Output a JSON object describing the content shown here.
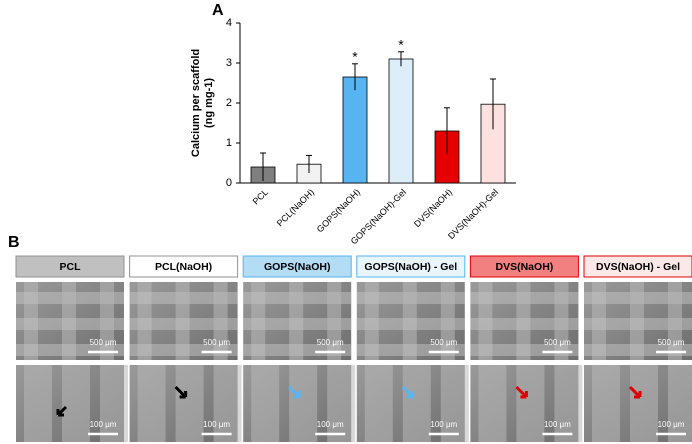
{
  "chart_data": {
    "type": "bar",
    "panel_label": "A",
    "y_label": [
      "Calcium per scaffold",
      "(ng mg-1)"
    ],
    "categories": [
      "PCL",
      "PCL(NaOH)",
      "GOPS(NaOH)",
      "GOPS(NaOH)-Gel",
      "DVS(NaOH)",
      "DVS(NaOH)-Gel"
    ],
    "values": [
      0.4,
      0.47,
      2.65,
      3.1,
      1.3,
      1.97
    ],
    "errors": [
      0.35,
      0.22,
      0.33,
      0.18,
      0.58,
      0.63
    ],
    "colors": [
      "#7f7f7f",
      "#f2f2f2",
      "#56b4f0",
      "#dbeef9",
      "#e60000",
      "#fde0e0"
    ],
    "significance": [
      null,
      null,
      "*",
      "*",
      null,
      null
    ],
    "ylim": [
      0,
      4
    ],
    "yticks": [
      0,
      1,
      2,
      3,
      4
    ]
  },
  "panel_b": {
    "label": "B",
    "columns": [
      {
        "header": "PCL",
        "fill": "#c0c0c0",
        "border": "#909090",
        "scale_bars": [
          "500 μm",
          "100 μm"
        ]
      },
      {
        "header": "PCL(NaOH)",
        "fill": "#ffffff",
        "border": "#909090",
        "scale_bars": [
          "500 μm",
          "100 μm"
        ]
      },
      {
        "header": "GOPS(NaOH)",
        "fill": "#b3dcf5",
        "border": "#56b4f0",
        "scale_bars": [
          "500 μm",
          "100 μm"
        ]
      },
      {
        "header": "GOPS(NaOH) - Gel",
        "fill": "#e9f5fc",
        "border": "#56b4f0",
        "scale_bars": [
          "500 μm",
          "100 μm"
        ]
      },
      {
        "header": "DVS(NaOH)",
        "fill": "#f28080",
        "border": "#e00000",
        "scale_bars": [
          "500 μm",
          "100 μm"
        ]
      },
      {
        "header": "DVS(NaOH) - Gel",
        "fill": "#fde8e8",
        "border": "#e00000",
        "scale_bars": [
          "500 μm",
          "100 μm"
        ]
      }
    ]
  }
}
